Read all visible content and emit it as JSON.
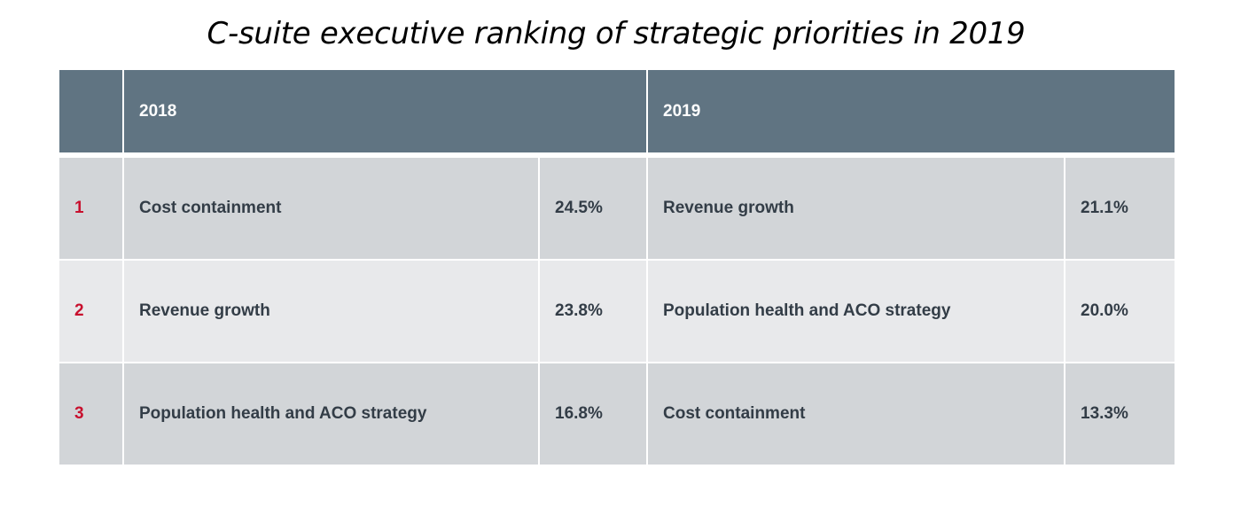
{
  "title": "C-suite executive ranking of strategic priorities in 2019",
  "header": {
    "rank_label": "",
    "year_a": "2018",
    "year_b": "2019"
  },
  "rows": [
    {
      "rank": "1",
      "a_item": "Cost containment",
      "a_pct": "24.5%",
      "b_item": "Revenue growth",
      "b_pct": "21.1%"
    },
    {
      "rank": "2",
      "a_item": "Revenue growth",
      "a_pct": "23.8%",
      "b_item": "Population health and ACO strategy",
      "b_pct": "20.0%"
    },
    {
      "rank": "3",
      "a_item": "Population health and ACO strategy",
      "a_pct": "16.8%",
      "b_item": "Cost containment",
      "b_pct": "13.3%"
    }
  ],
  "colors": {
    "header_bg": "#607482",
    "row_dark": "#d2d5d8",
    "row_light": "#e8e9eb",
    "rank_red": "#c8102e",
    "text": "#333d47"
  }
}
